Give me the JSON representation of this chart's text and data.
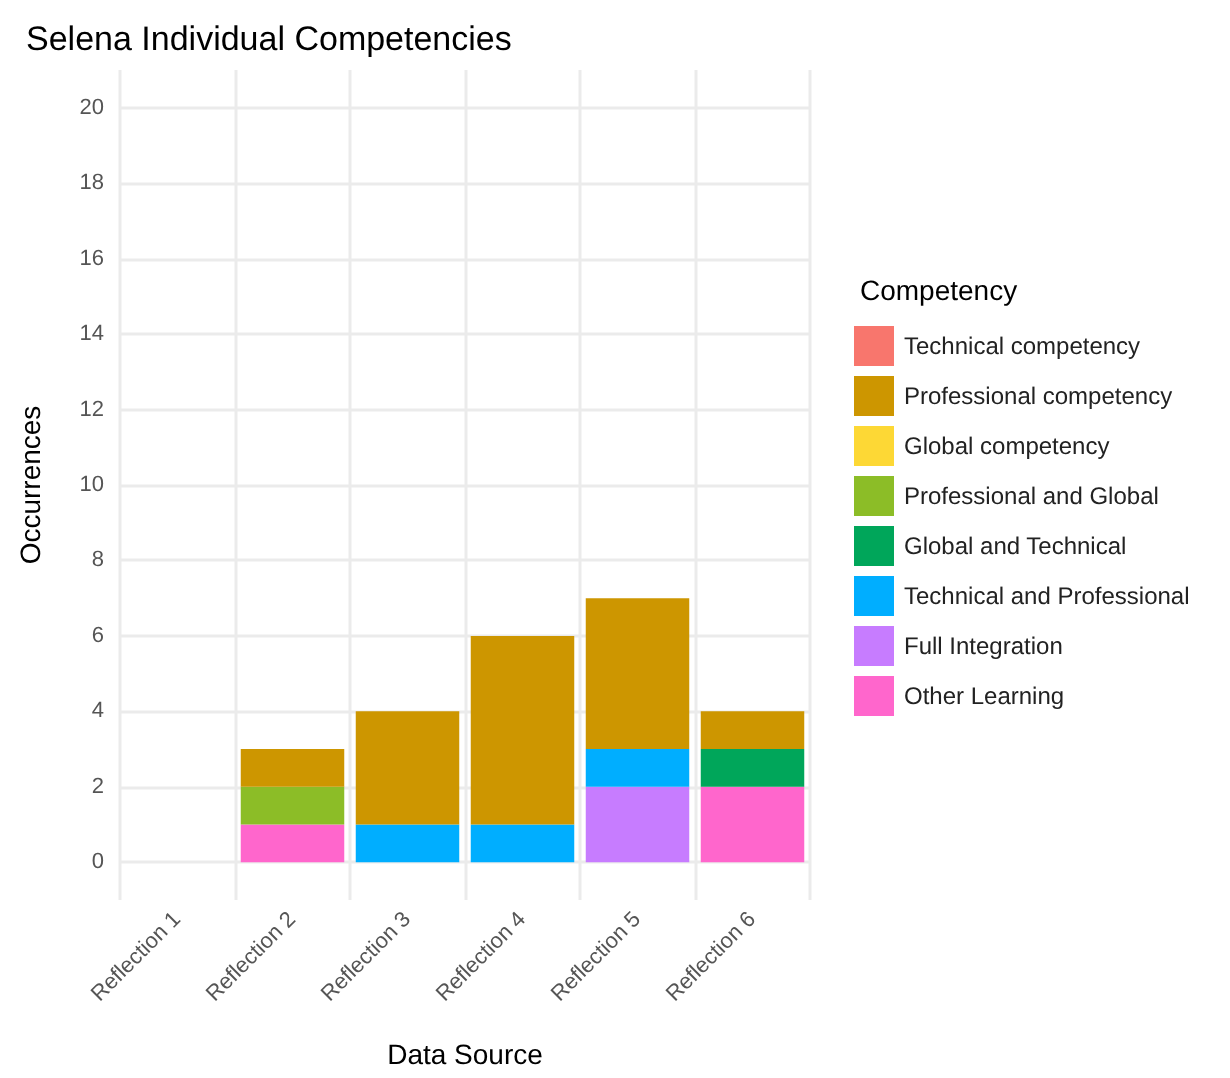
{
  "chart_data": {
    "type": "bar",
    "title": "Selena Individual Competencies",
    "xlabel": "Data Source",
    "ylabel": "Occurrences",
    "legend_title": "Competency",
    "categories": [
      "Reflection 1",
      "Reflection 2",
      "Reflection 3",
      "Reflection 4",
      "Reflection 5",
      "Reflection 6"
    ],
    "stacked": true,
    "series": [
      {
        "name": "Other Learning",
        "color": "#ff66cc",
        "values": [
          0,
          1,
          0,
          0,
          0,
          2
        ]
      },
      {
        "name": "Full Integration",
        "color": "#c77cff",
        "values": [
          0,
          0,
          0,
          0,
          2,
          0
        ]
      },
      {
        "name": "Technical and Professional",
        "color": "#00aeff",
        "values": [
          0,
          0,
          1,
          1,
          1,
          0
        ]
      },
      {
        "name": "Global and Technical",
        "color": "#00a65a",
        "values": [
          0,
          0,
          0,
          0,
          0,
          1
        ]
      },
      {
        "name": "Professional and Global",
        "color": "#8cbd27",
        "values": [
          0,
          1,
          0,
          0,
          0,
          0
        ]
      },
      {
        "name": "Global competency",
        "color": "#fdd835",
        "values": [
          0,
          0,
          0,
          0,
          0,
          0
        ]
      },
      {
        "name": "Professional competency",
        "color": "#cd9600",
        "values": [
          0,
          1,
          3,
          5,
          4,
          1
        ]
      },
      {
        "name": "Technical competency",
        "color": "#f8766d",
        "values": [
          0,
          0,
          0,
          0,
          0,
          0
        ]
      }
    ],
    "ylim": [
      -1,
      21
    ],
    "yticks": [
      0,
      2,
      4,
      6,
      8,
      10,
      12,
      14,
      16,
      18,
      20
    ],
    "grid": true,
    "legend": "right"
  }
}
